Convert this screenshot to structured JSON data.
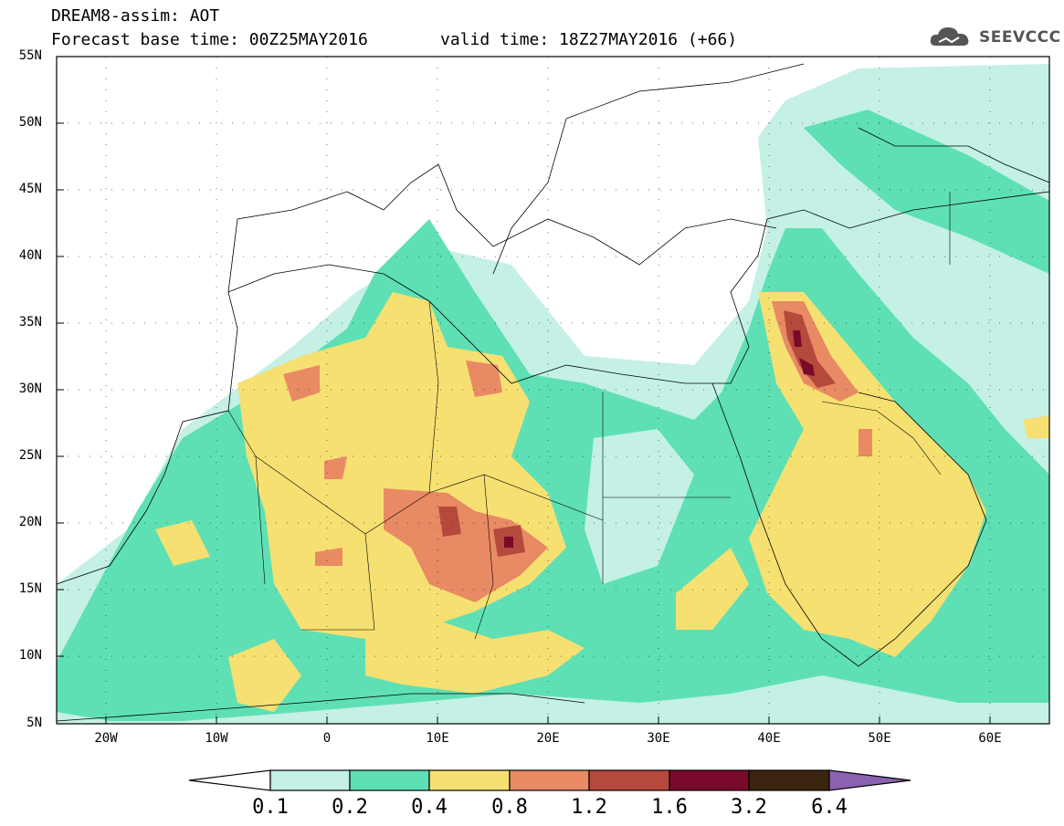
{
  "header": {
    "title": "DREAM8-assim: AOT",
    "base_time": "Forecast base time: 00Z25MAY2016",
    "valid_time": "valid time: 18Z27MAY2016 (+66)"
  },
  "logo": {
    "text": "SEEVCCC",
    "icon": "cloud-logo-icon"
  },
  "axes": {
    "lat_ticks": [
      "55N",
      "50N",
      "45N",
      "40N",
      "35N",
      "30N",
      "25N",
      "20N",
      "15N",
      "10N",
      "5N"
    ],
    "lat_values": [
      55,
      50,
      45,
      40,
      35,
      30,
      25,
      20,
      15,
      10,
      5
    ],
    "lon_ticks": [
      "20W",
      "10W",
      "0",
      "10E",
      "20E",
      "30E",
      "40E",
      "50E",
      "60E"
    ],
    "lon_values": [
      -20,
      -10,
      0,
      10,
      20,
      30,
      40,
      50,
      60
    ],
    "lon_range": [
      -25,
      65
    ],
    "lat_range": [
      5,
      55
    ]
  },
  "colorbar": {
    "labels": [
      "0.1",
      "0.2",
      "0.4",
      "0.8",
      "1.2",
      "1.6",
      "3.2",
      "6.4"
    ],
    "colors": [
      "#ffffff",
      "#c4f0e6",
      "#5ee0b4",
      "#f6e072",
      "#e88a64",
      "#b54a3c",
      "#7a0a2a",
      "#3a2410",
      "#8a62b0"
    ]
  },
  "legend_levels": {
    "very_low": "#c4f0e6",
    "low": "#5ee0b4",
    "medium": "#f6e072",
    "high": "#e88a64",
    "very_high": "#b54a3c",
    "extreme": "#7a0a2a"
  }
}
